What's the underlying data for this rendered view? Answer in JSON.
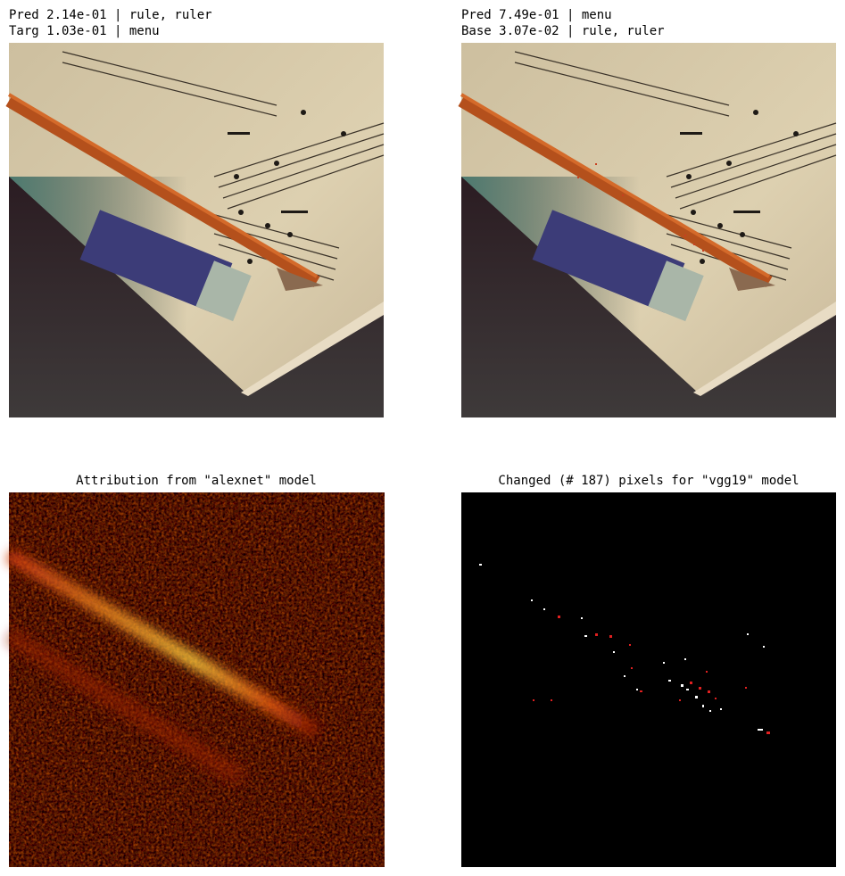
{
  "panels": [
    {
      "title_lines": [
        "Pred 2.14e-01 | rule, ruler",
        "Targ 1.03e-01 | menu"
      ]
    },
    {
      "title_lines": [
        "Pred 7.49e-01 | menu",
        "Base 3.07e-02 | rule, ruler"
      ]
    },
    {
      "title": "Attribution from \"alexnet\" model"
    },
    {
      "title": "Changed (# 187) pixels for \"vgg19\" model"
    }
  ]
}
